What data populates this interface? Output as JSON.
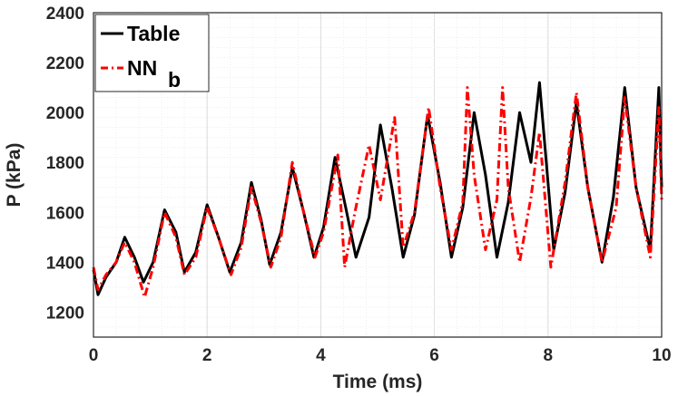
{
  "chart_data": {
    "type": "line",
    "title": "",
    "xlabel": "Time (ms)",
    "ylabel": "P (kPa)",
    "xlim": [
      0,
      10
    ],
    "ylim": [
      1100,
      2400
    ],
    "x_ticks": [
      "0",
      "2",
      "4",
      "6",
      "8",
      "10"
    ],
    "y_ticks": [
      "1200",
      "1400",
      "1600",
      "1800",
      "2000",
      "2200",
      "2400"
    ],
    "grid": "major and minor",
    "legend_position": "top-left",
    "legend": {
      "table": "Table",
      "nn_main": "NN",
      "nn_sub": "b"
    },
    "series": [
      {
        "name": "Table",
        "color": "#000000",
        "style": "solid",
        "x": [
          0,
          0.08,
          0.22,
          0.4,
          0.55,
          0.72,
          0.88,
          1.05,
          1.25,
          1.45,
          1.6,
          1.8,
          2.0,
          2.2,
          2.4,
          2.6,
          2.78,
          2.95,
          3.1,
          3.3,
          3.5,
          3.7,
          3.88,
          4.05,
          4.25,
          4.42,
          4.62,
          4.85,
          5.05,
          5.25,
          5.45,
          5.65,
          5.88,
          6.1,
          6.3,
          6.5,
          6.7,
          6.9,
          7.1,
          7.3,
          7.5,
          7.7,
          7.85,
          8.1,
          8.3,
          8.5,
          8.7,
          8.95,
          9.15,
          9.35,
          9.55,
          9.8,
          9.95,
          10
        ],
        "y": [
          1370,
          1270,
          1340,
          1400,
          1500,
          1420,
          1320,
          1400,
          1610,
          1520,
          1360,
          1440,
          1630,
          1500,
          1360,
          1480,
          1720,
          1570,
          1390,
          1520,
          1780,
          1600,
          1420,
          1540,
          1820,
          1640,
          1420,
          1580,
          1950,
          1700,
          1420,
          1590,
          1990,
          1720,
          1420,
          1620,
          2000,
          1750,
          1420,
          1640,
          2000,
          1800,
          2120,
          1450,
          1680,
          2040,
          1700,
          1400,
          1660,
          2100,
          1700,
          1450,
          2100,
          1700
        ]
      },
      {
        "name": "NN b",
        "color": "#ff0000",
        "style": "dashdot",
        "x": [
          0,
          0.08,
          0.22,
          0.4,
          0.55,
          0.72,
          0.9,
          1.05,
          1.25,
          1.45,
          1.6,
          1.8,
          2.0,
          2.2,
          2.42,
          2.6,
          2.78,
          2.95,
          3.12,
          3.3,
          3.5,
          3.7,
          3.9,
          4.05,
          4.3,
          4.42,
          4.6,
          4.85,
          5.05,
          5.3,
          5.45,
          5.65,
          5.9,
          6.1,
          6.3,
          6.5,
          6.58,
          6.7,
          6.9,
          7.1,
          7.2,
          7.3,
          7.5,
          7.7,
          7.85,
          8.05,
          8.3,
          8.5,
          8.7,
          8.95,
          9.2,
          9.35,
          9.55,
          9.8,
          9.95,
          10
        ],
        "y": [
          1380,
          1290,
          1350,
          1400,
          1480,
          1400,
          1260,
          1380,
          1600,
          1500,
          1350,
          1420,
          1620,
          1500,
          1350,
          1460,
          1700,
          1560,
          1380,
          1500,
          1800,
          1600,
          1420,
          1520,
          1830,
          1380,
          1600,
          1870,
          1650,
          1980,
          1460,
          1600,
          2020,
          1700,
          1450,
          1640,
          2100,
          1750,
          1450,
          1650,
          2100,
          1700,
          1400,
          1660,
          1920,
          1380,
          1720,
          2080,
          1700,
          1400,
          1620,
          2060,
          1700,
          1420,
          2020,
          1650
        ]
      }
    ]
  }
}
